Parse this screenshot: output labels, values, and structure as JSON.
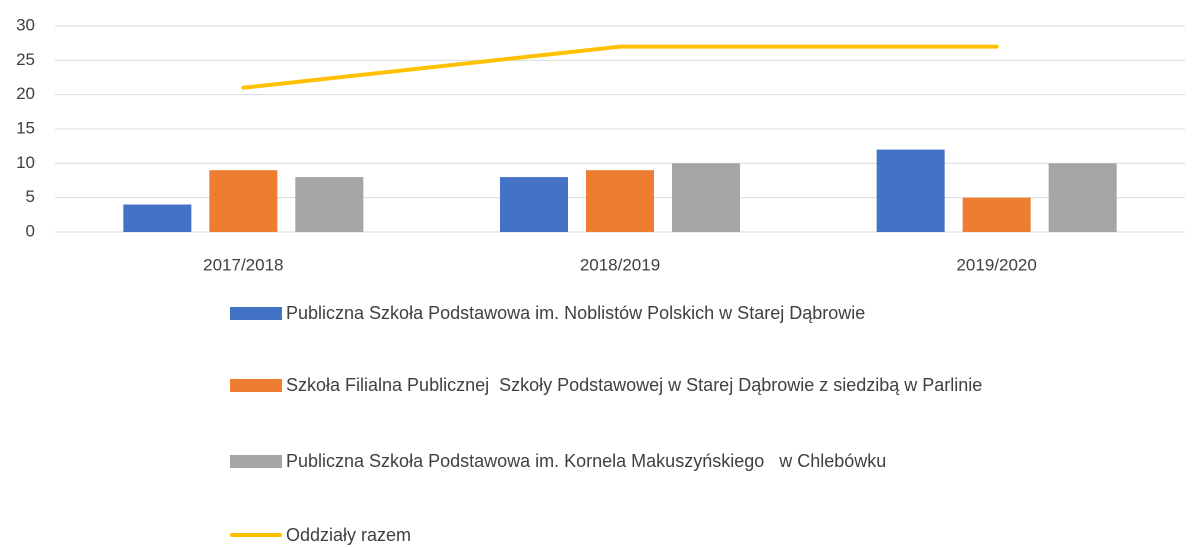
{
  "chart_data": {
    "type": "bar",
    "categories": [
      "2017/2018",
      "2018/2019",
      "2019/2020"
    ],
    "series": [
      {
        "name": "Publiczna Szkoła Podstawowa im. Noblistów Polskich w Starej Dąbrowie",
        "color": "#4472c4",
        "values": [
          4,
          8,
          12
        ]
      },
      {
        "name": "Szkoła Filialna Publicznej  Szkoły Podstawowej w Starej Dąbrowie z siedzibą w Parlinie",
        "color": "#ed7d31",
        "values": [
          9,
          9,
          5
        ]
      },
      {
        "name": "Publiczna Szkoła Podstawowa im. Kornela Makuszyńskiego   w Chlebówku",
        "color": "#a5a5a5",
        "values": [
          8,
          10,
          10
        ]
      },
      {
        "name": "Oddziały razem",
        "color": "#ffc000",
        "type": "line",
        "values": [
          21,
          27,
          27
        ]
      }
    ],
    "ylim": [
      0,
      30
    ],
    "yticks": [
      0,
      5,
      10,
      15,
      20,
      25,
      30
    ],
    "grid": true,
    "legend": "bottom"
  }
}
